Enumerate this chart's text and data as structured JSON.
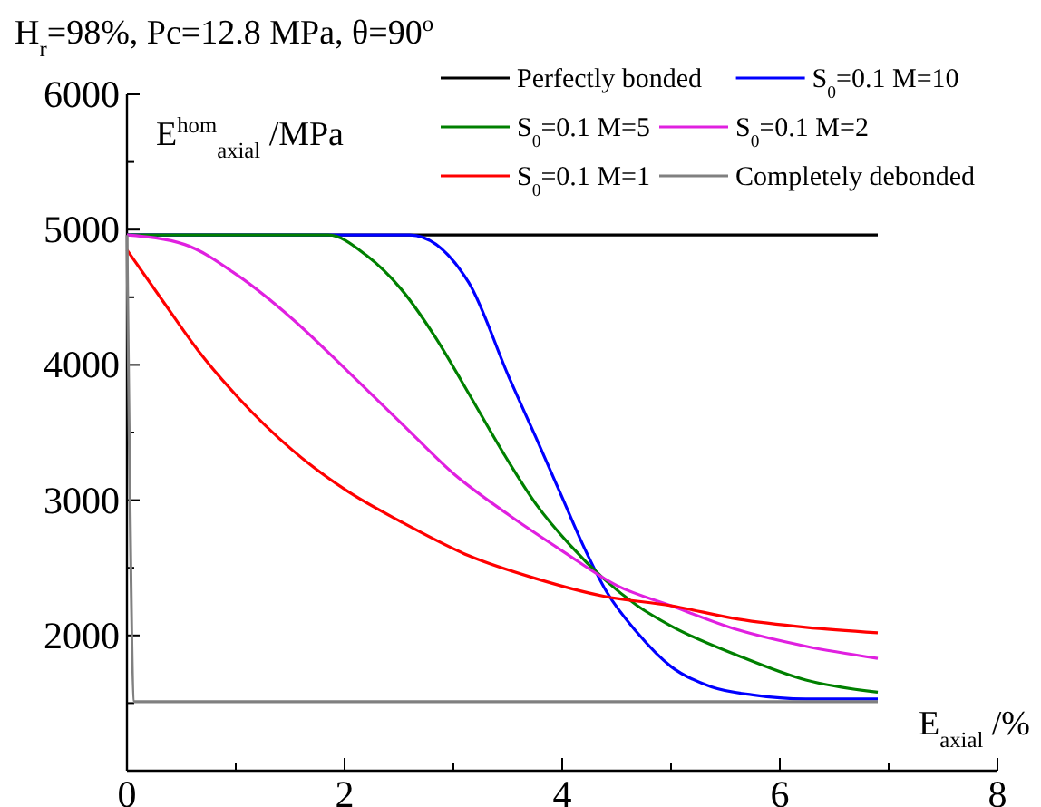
{
  "chart_data": {
    "type": "line",
    "title": "H$_{r}$=98%, Pc=12.8 MPa, θ=90$^{o}$",
    "xlabel": "E$_{axial}$ /%",
    "ylabel": "E$^{hom}$$_{axial}$ /MPa",
    "xlim": [
      0,
      8
    ],
    "ylim": [
      1000,
      6000
    ],
    "xticks": [
      0,
      {
        "value": 1,
        "label": null
      },
      2,
      {
        "value": 3,
        "label": null
      },
      4,
      {
        "value": 5,
        "label": null
      },
      6,
      {
        "value": 7,
        "label": null
      },
      8
    ],
    "yticks": [
      {
        "value": 1500,
        "label": null
      },
      2000,
      {
        "value": 2500,
        "label": null
      },
      3000,
      {
        "value": 3500,
        "label": null
      },
      4000,
      {
        "value": 4500,
        "label": null
      },
      5000,
      {
        "value": 5500,
        "label": null
      },
      6000
    ],
    "grid": false,
    "legend": "top right",
    "marker": "none",
    "line_style": "solid",
    "series": [
      {
        "name": "Perfectly bonded",
        "color": "#000000",
        "x": [
          0,
          6.9
        ],
        "values": [
          4960,
          4960
        ]
      },
      {
        "name": "S$_{0}$=0.1 M=10",
        "color": "#0000ff",
        "x": [
          0,
          2.6,
          3.14,
          3.51,
          3.76,
          4.0,
          4.19,
          4.41,
          4.69,
          5.0,
          5.37,
          5.75,
          6.24,
          6.9
        ],
        "values": [
          4960,
          4960,
          4610,
          3910,
          3460,
          3020,
          2670,
          2320,
          2020,
          1770,
          1620,
          1560,
          1530,
          1530
        ]
      },
      {
        "name": "S$_{0}$=0.1 M=5",
        "color": "#008000",
        "x": [
          0,
          1,
          1.85,
          2.2,
          2.52,
          2.83,
          3.14,
          3.45,
          3.76,
          4.07,
          4.38,
          4.69,
          5.0,
          5.62,
          6.24,
          6.9
        ],
        "values": [
          4960,
          4960,
          4960,
          4810,
          4560,
          4210,
          3790,
          3360,
          2970,
          2670,
          2420,
          2220,
          2070,
          1850,
          1670,
          1580
        ]
      },
      {
        "name": "S$_{0}$=0.1 M=2",
        "color": "#e020e0",
        "x": [
          0,
          0.53,
          1.02,
          1.52,
          2.02,
          2.52,
          3.01,
          3.51,
          4.01,
          4.5,
          5.0,
          5.62,
          6.24,
          6.9
        ],
        "values": [
          4960,
          4890,
          4660,
          4340,
          3960,
          3570,
          3190,
          2890,
          2620,
          2370,
          2220,
          2040,
          1920,
          1830
        ]
      },
      {
        "name": "S$_{0}$=0.1 M=1",
        "color": "#ff0000",
        "x": [
          0,
          0.34,
          0.65,
          1.02,
          1.52,
          2.02,
          2.52,
          3.14,
          3.76,
          4.38,
          5.0,
          5.62,
          6.24,
          6.9
        ],
        "values": [
          4850,
          4460,
          4110,
          3760,
          3370,
          3070,
          2840,
          2590,
          2420,
          2290,
          2220,
          2120,
          2060,
          2020
        ]
      },
      {
        "name": "Completely debonded",
        "color": "#808080",
        "x": [
          0,
          0.07,
          6.9
        ],
        "values": [
          4960,
          1510,
          1510
        ]
      }
    ]
  }
}
